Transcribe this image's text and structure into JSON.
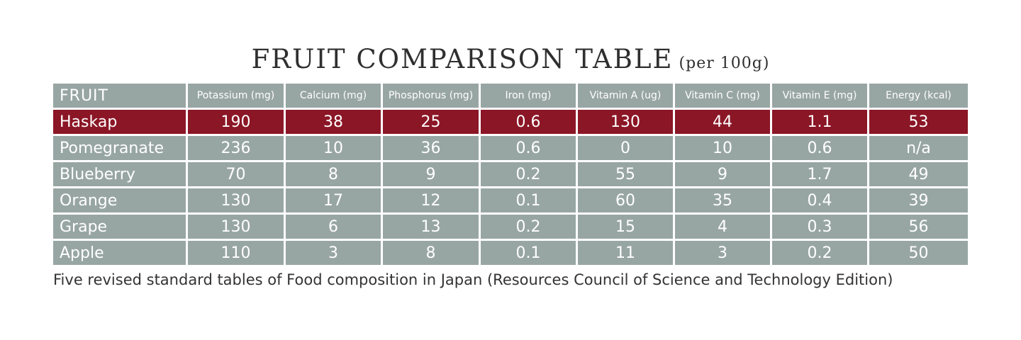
{
  "title": {
    "main": "FRUIT COMPARISON TABLE",
    "sub": "(per 100g)"
  },
  "colors": {
    "header_bg": "#98a6a3",
    "highlight_bg": "#8b1626",
    "cell_bg": "#98a6a3",
    "text": "#ffffff"
  },
  "table": {
    "columns": [
      "FRUIT",
      "Potassium (mg)",
      "Calcium (mg)",
      "Phosphorus (mg)",
      "Iron (mg)",
      "Vitamin A (ug)",
      "Vitamin C (mg)",
      "Vitamin E (mg)",
      "Energy (kcal)"
    ],
    "rows": [
      [
        "Haskap",
        "190",
        "38",
        "25",
        "0.6",
        "130",
        "44",
        "1.1",
        "53"
      ],
      [
        "Pomegranate",
        "236",
        "10",
        "36",
        "0.6",
        "0",
        "10",
        "0.6",
        "n/a"
      ],
      [
        "Blueberry",
        "70",
        "8",
        "9",
        "0.2",
        "55",
        "9",
        "1.7",
        "49"
      ],
      [
        "Orange",
        "130",
        "17",
        "12",
        "0.1",
        "60",
        "35",
        "0.4",
        "39"
      ],
      [
        "Grape",
        "130",
        "6",
        "13",
        "0.2",
        "15",
        "4",
        "0.3",
        "56"
      ],
      [
        "Apple",
        "110",
        "3",
        "8",
        "0.1",
        "11",
        "3",
        "0.2",
        "50"
      ]
    ]
  },
  "source": "Five revised standard tables of Food composition in Japan (Resources Council of Science and Technology Edition)"
}
